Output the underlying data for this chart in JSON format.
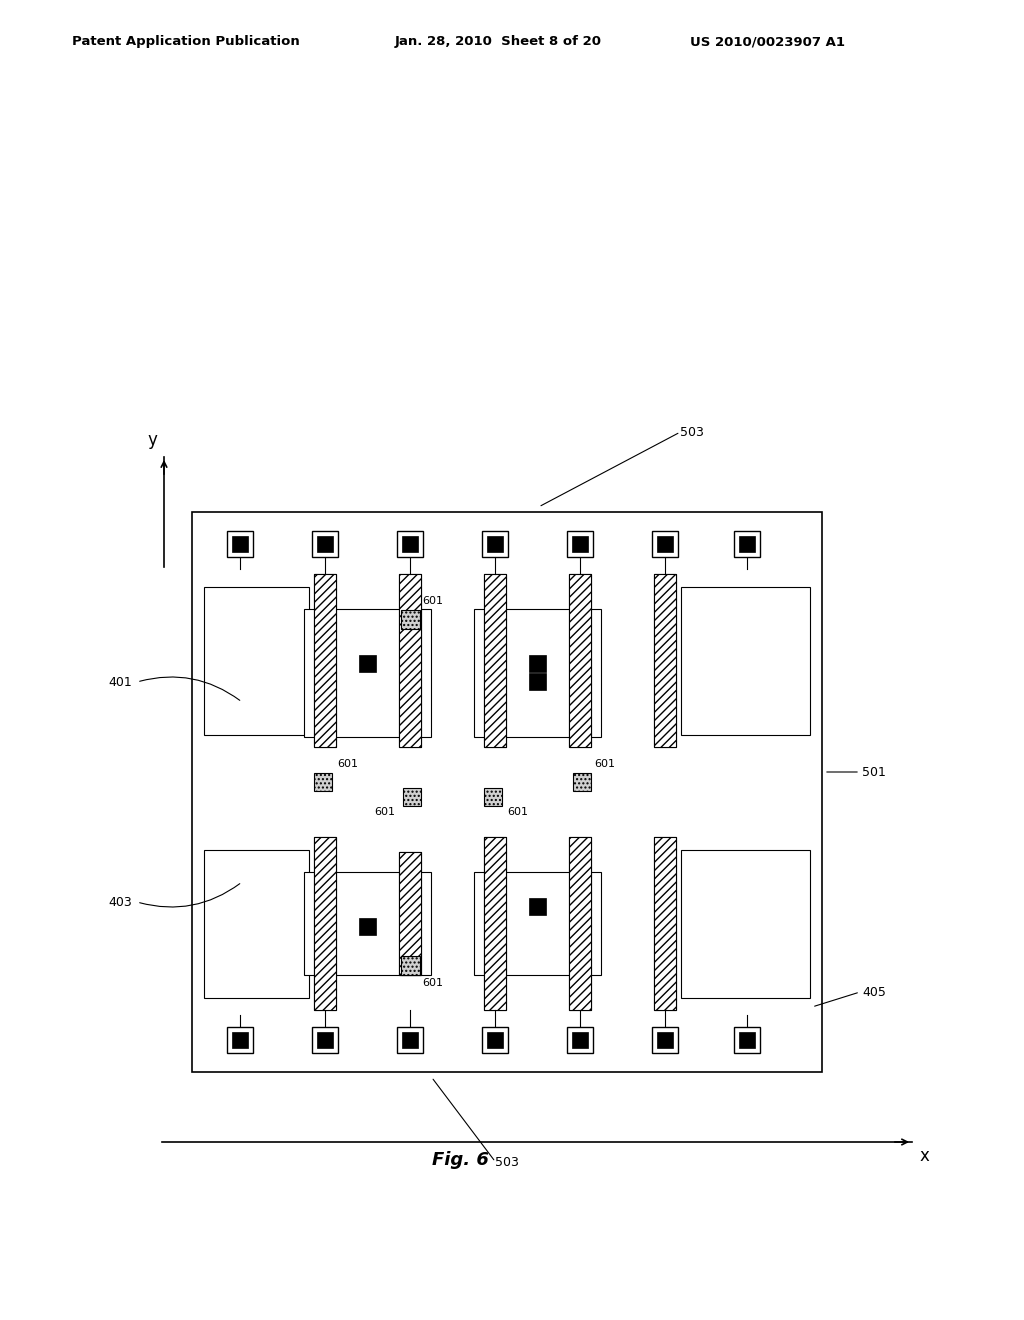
{
  "bg": "#ffffff",
  "header_left": "Patent Application Publication",
  "header_mid": "Jan. 28, 2010  Sheet 8 of 20",
  "header_right": "US 2010/0023907 A1",
  "fig_caption": "Fig. 6",
  "lw_main": 1.0,
  "lw_gate": 0.8,
  "lw_thin": 0.7,
  "gate_hatch": "////",
  "contact_hatch": "....",
  "black": "#000000",
  "white": "#ffffff",
  "gray_hatch": "#666666"
}
